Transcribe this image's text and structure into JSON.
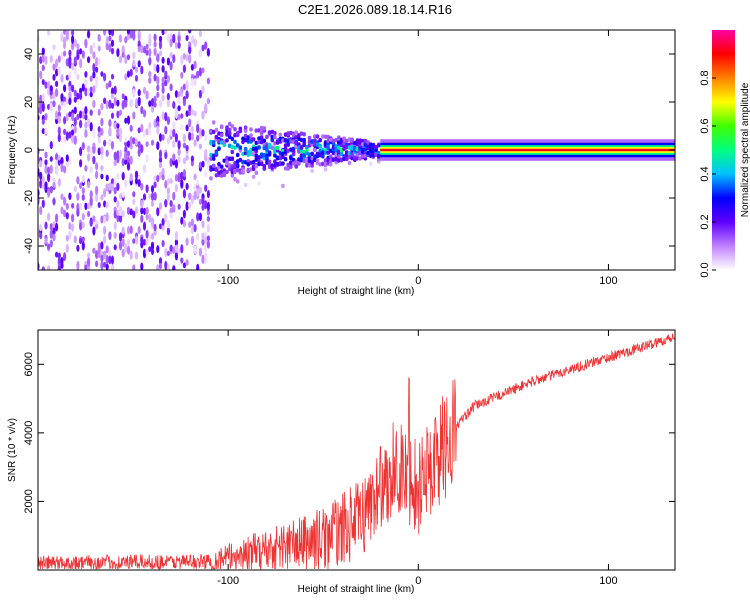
{
  "title": "C2E1.2026.089.18.14.R16",
  "chart_data": [
    {
      "type": "heatmap",
      "name": "spectrogram",
      "xlabel": "Height of straight line (km)",
      "ylabel": "Frequency (Hz)",
      "xlim": [
        -200,
        135
      ],
      "ylim": [
        -50,
        50
      ],
      "x_ticks": [
        -100,
        0,
        100
      ],
      "x_tick_labels": [
        "-100",
        "0",
        "100"
      ],
      "y_ticks": [
        -40,
        -20,
        0,
        20,
        40
      ],
      "y_tick_labels": [
        "-40",
        "-20",
        "0",
        "20",
        "40"
      ],
      "colorbar": {
        "label": "Normalized spectral amplitude",
        "range": [
          0,
          1
        ],
        "ticks": [
          0.0,
          0.2,
          0.4,
          0.6,
          0.8
        ],
        "tick_labels": [
          "0.0",
          "0.2",
          "0.4",
          "0.6",
          "0.8"
        ],
        "colors": [
          "#ffffff",
          "#c080ff",
          "#6000ff",
          "#0000ff",
          "#00c0ff",
          "#00ff80",
          "#40ff00",
          "#ffff00",
          "#ff8000",
          "#ff0000",
          "#ff00a0"
        ]
      },
      "regions": [
        {
          "x_from": -200,
          "x_to": -110,
          "description_level": "noise",
          "amp_min": 0.02,
          "amp_max": 0.22
        },
        {
          "x_from": -110,
          "x_to": -20,
          "description_level": "transition",
          "amp_min": 0.1,
          "amp_max": 0.55
        },
        {
          "x_from": -20,
          "x_to": 135,
          "description_level": "tone",
          "amp_peak": 0.92
        }
      ],
      "tone_frequency_hz": 0
    },
    {
      "type": "line",
      "name": "snr",
      "xlabel": "Height of straight line (km)",
      "ylabel": "SNR (10 * v/v)",
      "xlim": [
        -200,
        135
      ],
      "ylim": [
        0,
        7000
      ],
      "x_ticks": [
        -100,
        0,
        100
      ],
      "x_tick_labels": [
        "-100",
        "0",
        "100"
      ],
      "y_ticks": [
        2000,
        4000,
        6000
      ],
      "y_tick_labels": [
        "2000",
        "4000",
        "6000"
      ],
      "color": "#ee3333",
      "trend": [
        {
          "x": -200,
          "y": 200
        },
        {
          "x": -110,
          "y": 250
        },
        {
          "x": -80,
          "y": 600
        },
        {
          "x": -50,
          "y": 900
        },
        {
          "x": -30,
          "y": 1500
        },
        {
          "x": -20,
          "y": 2400
        },
        {
          "x": -10,
          "y": 3000
        },
        {
          "x": 0,
          "y": 2500
        },
        {
          "x": 10,
          "y": 3300
        },
        {
          "x": 20,
          "y": 4200
        },
        {
          "x": 30,
          "y": 4800
        },
        {
          "x": 60,
          "y": 5500
        },
        {
          "x": 100,
          "y": 6200
        },
        {
          "x": 135,
          "y": 6800
        }
      ],
      "spikes": [
        {
          "x": -20,
          "y": 3600
        },
        {
          "x": -13,
          "y": 4300
        },
        {
          "x": -5,
          "y": 5600
        },
        {
          "x": 3,
          "y": 2200
        }
      ]
    }
  ]
}
